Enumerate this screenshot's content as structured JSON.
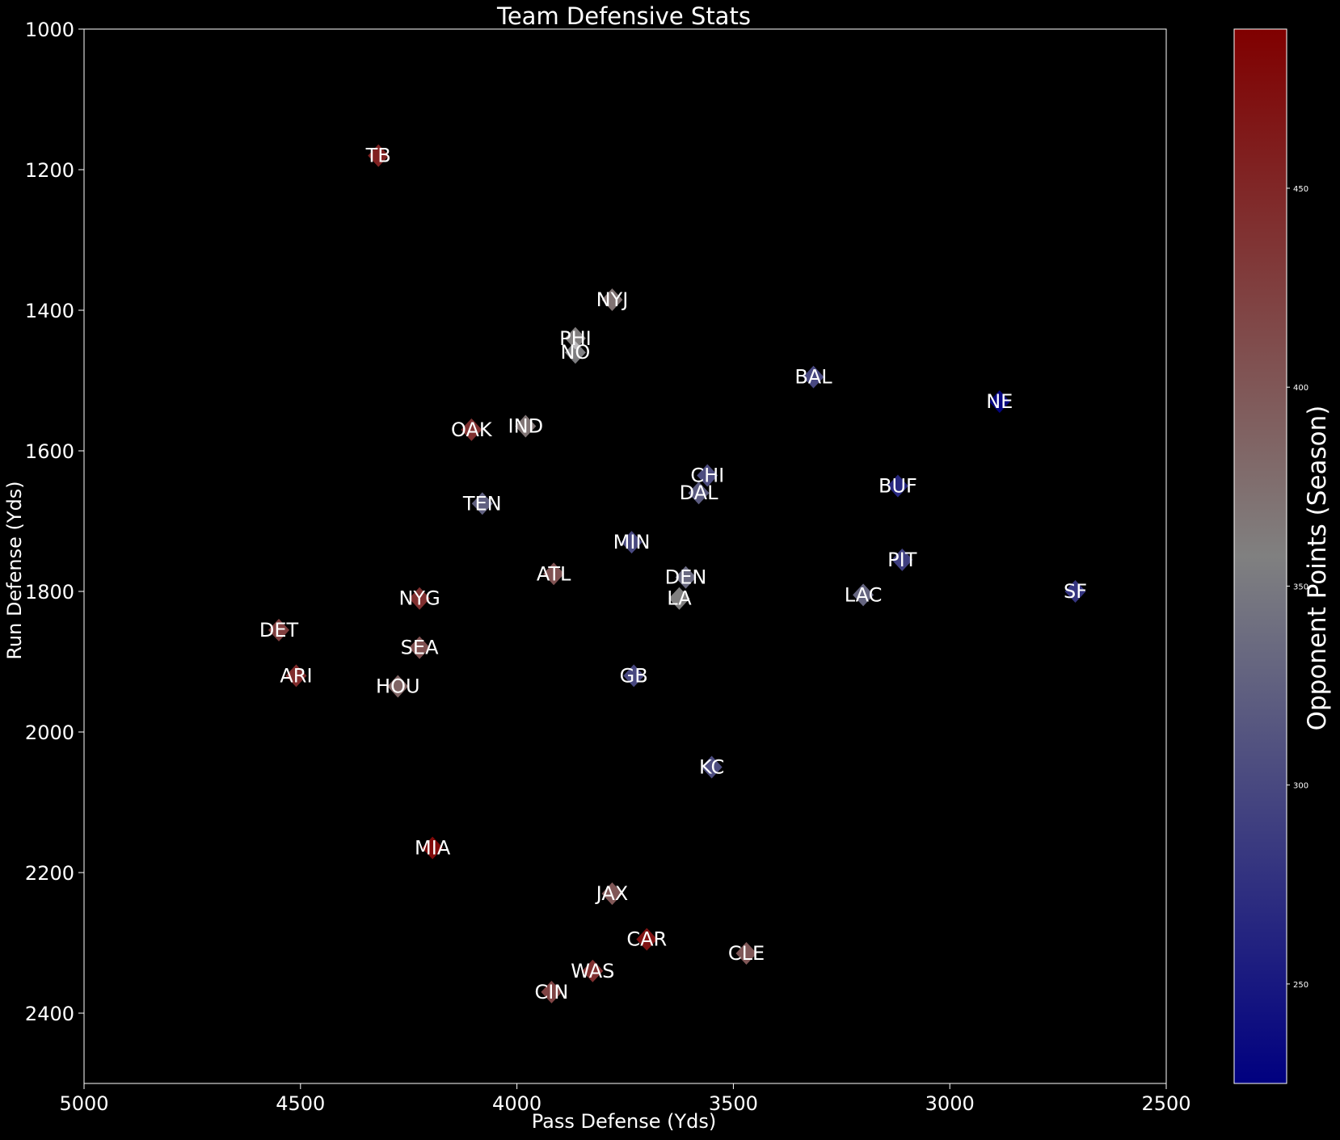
{
  "chart_data": [
    {
      "type": "scatter",
      "title": "Team Defensive Stats",
      "xlabel": "Pass Defense (Yds)",
      "ylabel": "Run Defense (Yds)",
      "xlim": [
        5000,
        2500
      ],
      "ylim": [
        2500,
        1000
      ],
      "x_inverted": true,
      "y_inverted": true,
      "x_ticks": [
        5000,
        4500,
        4000,
        3500,
        3000,
        2500
      ],
      "y_ticks": [
        1000,
        1200,
        1400,
        1600,
        1800,
        2000,
        2200,
        2400
      ],
      "grid": false,
      "marker": "diamond",
      "colormap": "bwr",
      "colorbar": {
        "label": "Opponent Points (Season)",
        "range": [
          225,
          490
        ],
        "ticks": [
          250,
          300,
          350,
          400,
          450
        ]
      },
      "points": [
        {
          "team": "TB",
          "x": 4320,
          "y": 1180,
          "c": 455
        },
        {
          "team": "NYJ",
          "x": 3780,
          "y": 1385,
          "c": 372
        },
        {
          "team": "PHI",
          "x": 3865,
          "y": 1440,
          "c": 360
        },
        {
          "team": "NO",
          "x": 3865,
          "y": 1460,
          "c": 355
        },
        {
          "team": "BAL",
          "x": 3315,
          "y": 1495,
          "c": 300
        },
        {
          "team": "NE",
          "x": 2885,
          "y": 1530,
          "c": 230
        },
        {
          "team": "OAK",
          "x": 4105,
          "y": 1570,
          "c": 440
        },
        {
          "team": "IND",
          "x": 3980,
          "y": 1565,
          "c": 370
        },
        {
          "team": "CHI",
          "x": 3560,
          "y": 1635,
          "c": 305
        },
        {
          "team": "DAL",
          "x": 3580,
          "y": 1660,
          "c": 320
        },
        {
          "team": "BUF",
          "x": 3120,
          "y": 1650,
          "c": 265
        },
        {
          "team": "TEN",
          "x": 4080,
          "y": 1675,
          "c": 325
        },
        {
          "team": "MIN",
          "x": 3735,
          "y": 1730,
          "c": 300
        },
        {
          "team": "PIT",
          "x": 3110,
          "y": 1755,
          "c": 290
        },
        {
          "team": "ATL",
          "x": 3915,
          "y": 1775,
          "c": 405
        },
        {
          "team": "DEN",
          "x": 3610,
          "y": 1780,
          "c": 335
        },
        {
          "team": "SF",
          "x": 2710,
          "y": 1800,
          "c": 280
        },
        {
          "team": "LAC",
          "x": 3200,
          "y": 1805,
          "c": 330
        },
        {
          "team": "LA",
          "x": 3625,
          "y": 1810,
          "c": 358
        },
        {
          "team": "NYG",
          "x": 4225,
          "y": 1810,
          "c": 440
        },
        {
          "team": "DET",
          "x": 4550,
          "y": 1855,
          "c": 425
        },
        {
          "team": "SEA",
          "x": 4225,
          "y": 1880,
          "c": 405
        },
        {
          "team": "ARI",
          "x": 4510,
          "y": 1920,
          "c": 445
        },
        {
          "team": "GB",
          "x": 3730,
          "y": 1920,
          "c": 300
        },
        {
          "team": "HOU",
          "x": 4275,
          "y": 1935,
          "c": 385
        },
        {
          "team": "KC",
          "x": 3550,
          "y": 2050,
          "c": 305
        },
        {
          "team": "MIA",
          "x": 4195,
          "y": 2165,
          "c": 480
        },
        {
          "team": "JAX",
          "x": 3780,
          "y": 2230,
          "c": 400
        },
        {
          "team": "CAR",
          "x": 3700,
          "y": 2295,
          "c": 470
        },
        {
          "team": "CLE",
          "x": 3470,
          "y": 2315,
          "c": 400
        },
        {
          "team": "WAS",
          "x": 3825,
          "y": 2340,
          "c": 440
        },
        {
          "team": "CIN",
          "x": 3920,
          "y": 2370,
          "c": 420
        }
      ]
    }
  ]
}
